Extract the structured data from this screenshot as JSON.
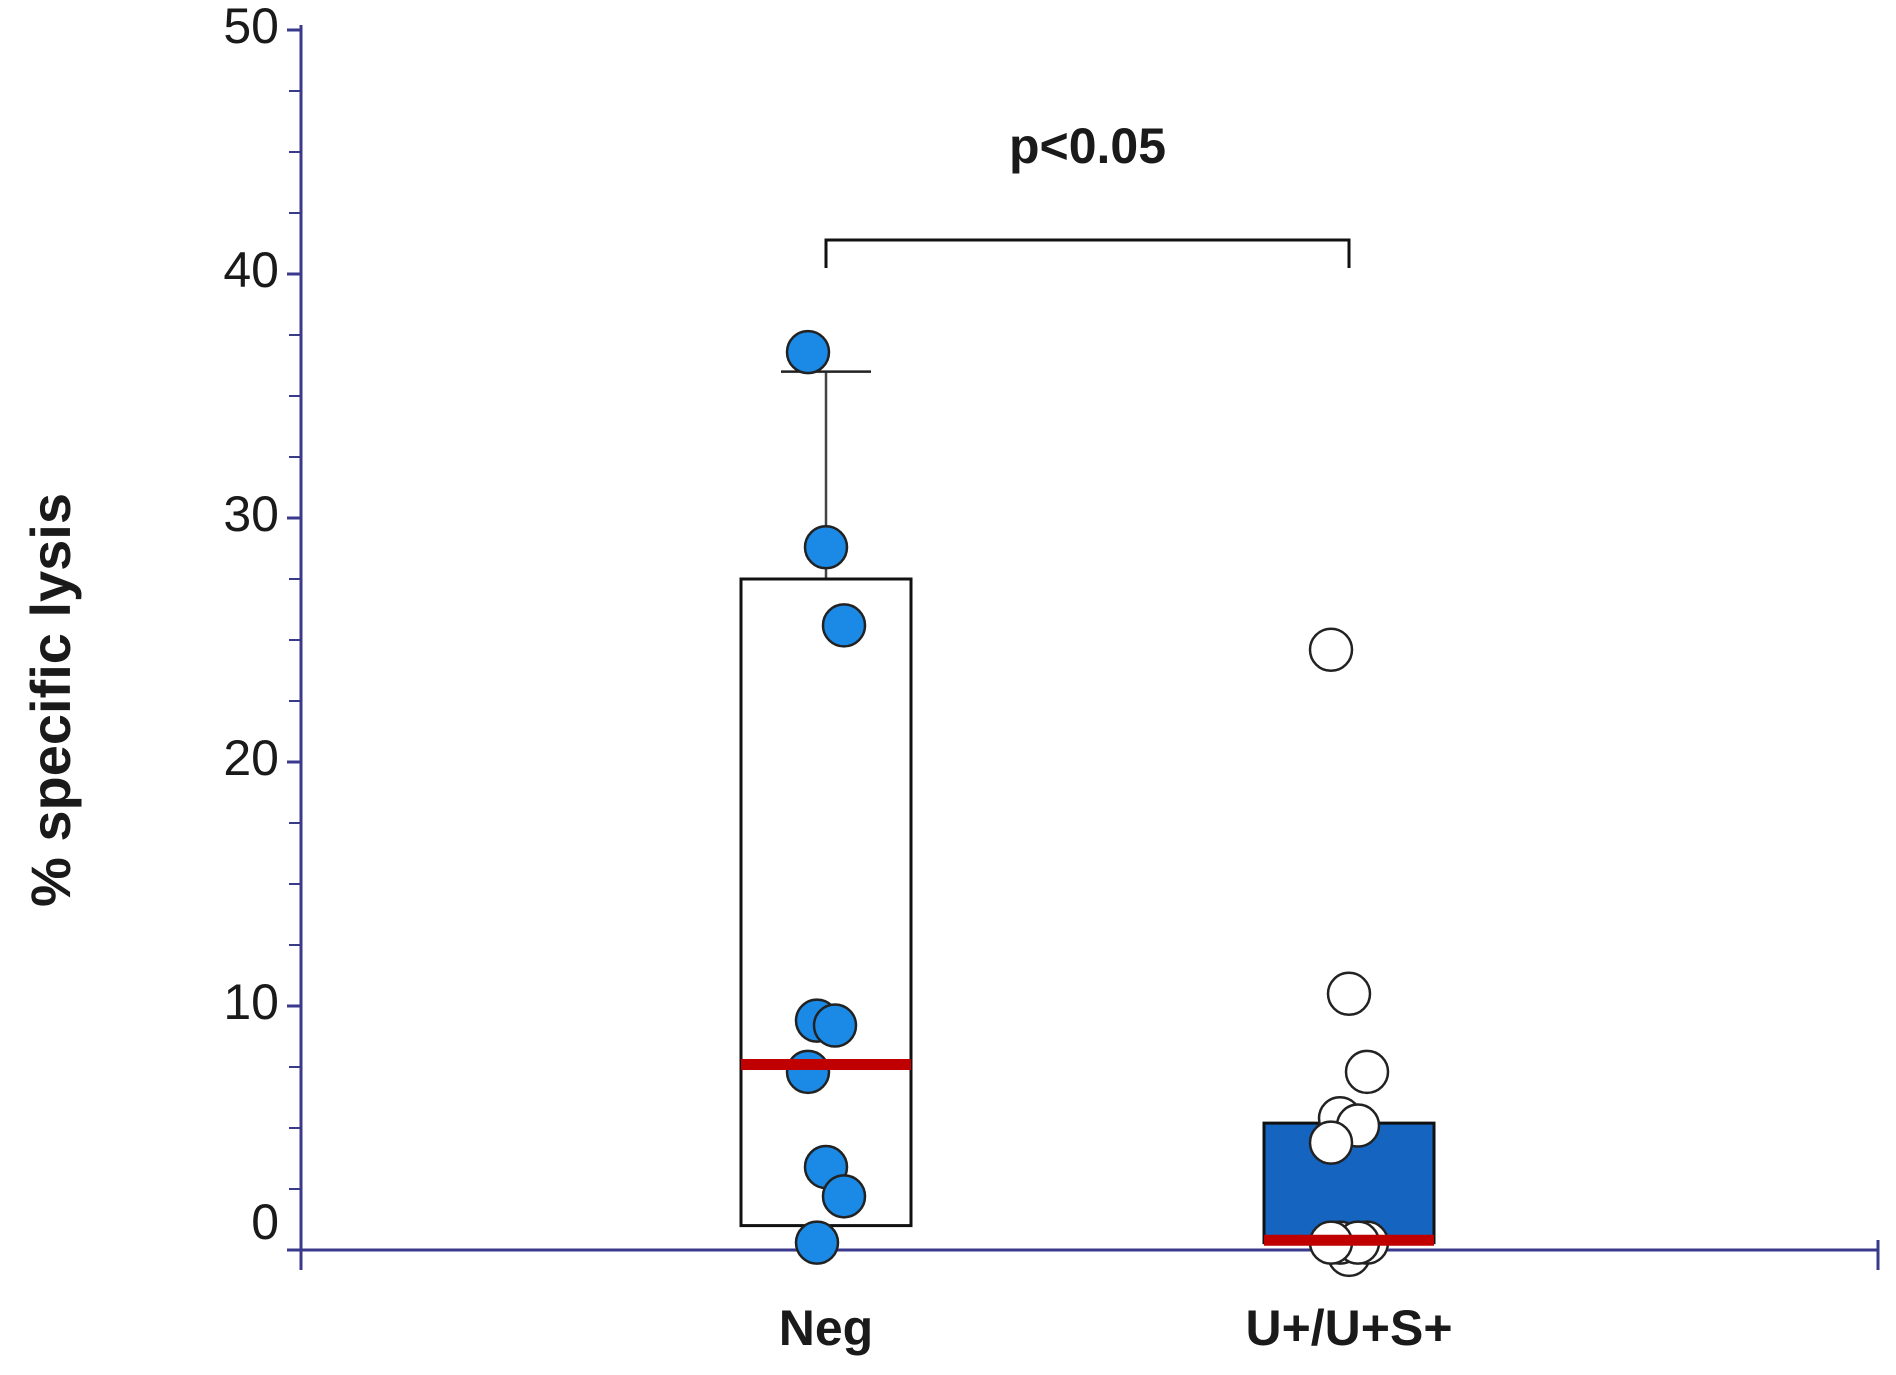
{
  "chart_data": {
    "type": "box",
    "y_label": "% specific lysis",
    "annotation": "p<0.05",
    "categories": [
      "Neg",
      "U+/U+S+"
    ],
    "ylim": [
      0,
      50
    ],
    "yticks": [
      0,
      10,
      20,
      30,
      40,
      50
    ],
    "minor_yticks": [
      2.5,
      5,
      7.5,
      12.5,
      15,
      17.5,
      22.5,
      25,
      27.5,
      32.5,
      35,
      37.5,
      42.5,
      45,
      47.5
    ],
    "median_color": "#c00000",
    "axis_color": "#3a3a8c",
    "boxes": [
      {
        "q1": 1,
        "median": 7.6,
        "q3": 27.5,
        "whisker_high": 36,
        "box_color": "#ffffff",
        "point_color": "#1a8ae6",
        "points": [
          36.8,
          28.8,
          25.6,
          9.4,
          9.2,
          7.3,
          3.4,
          2.2,
          0.3
        ]
      },
      {
        "q1": 0.3,
        "median": 0.4,
        "q3": 5.2,
        "box_color": "#1565c0",
        "point_color": "#ffffff",
        "points": [
          24.6,
          10.5,
          7.3,
          5.4,
          5.1,
          4.4,
          -0.2,
          0.3,
          0.3,
          0.3,
          0.3
        ]
      }
    ]
  }
}
